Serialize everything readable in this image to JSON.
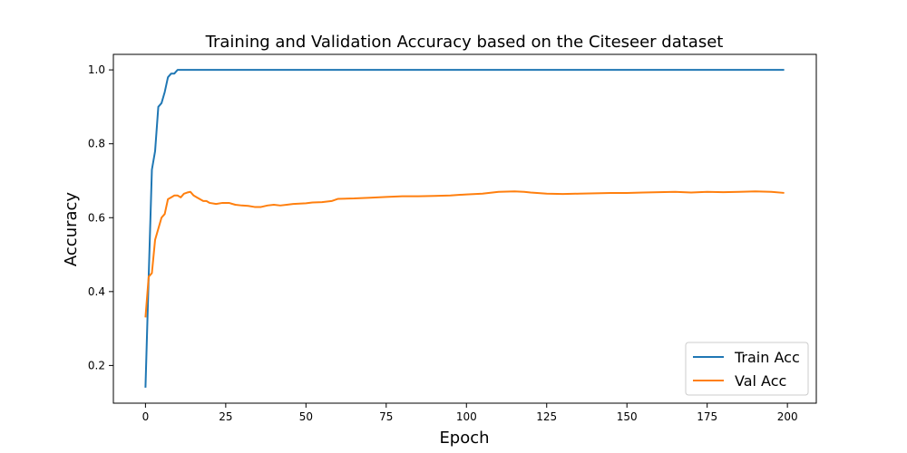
{
  "chart_data": {
    "type": "line",
    "title": "Training and Validation Accuracy based on the Citeseer dataset",
    "xlabel": "Epoch",
    "ylabel": "Accuracy",
    "xlim": [
      -10,
      209
    ],
    "ylim": [
      0.098,
      1.042
    ],
    "xticks": [
      0,
      25,
      50,
      75,
      100,
      125,
      150,
      175,
      200
    ],
    "yticks": [
      0.2,
      0.4,
      0.6,
      0.8,
      1.0
    ],
    "ytick_labels": [
      "0.2",
      "0.4",
      "0.6",
      "0.8",
      "1.0"
    ],
    "grid": false,
    "legend_position": "lower-right",
    "series": [
      {
        "name": "Train Acc",
        "color": "#1f77b4",
        "x": [
          0,
          1,
          2,
          3,
          4,
          5,
          6,
          7,
          8,
          9,
          10,
          11,
          12,
          15,
          20,
          50,
          100,
          150,
          199
        ],
        "y": [
          0.14,
          0.44,
          0.73,
          0.78,
          0.9,
          0.91,
          0.94,
          0.98,
          0.99,
          0.99,
          1.0,
          1.0,
          1.0,
          1.0,
          1.0,
          1.0,
          1.0,
          1.0,
          1.0
        ]
      },
      {
        "name": "Val Acc",
        "color": "#ff7f0e",
        "x": [
          0,
          1,
          2,
          3,
          4,
          5,
          6,
          7,
          8,
          9,
          10,
          11,
          12,
          13,
          14,
          15,
          16,
          17,
          18,
          19,
          20,
          22,
          24,
          26,
          28,
          30,
          32,
          34,
          36,
          38,
          40,
          42,
          44,
          46,
          48,
          50,
          52,
          55,
          58,
          60,
          65,
          70,
          75,
          80,
          85,
          90,
          95,
          100,
          105,
          110,
          115,
          118,
          120,
          125,
          130,
          135,
          140,
          145,
          150,
          155,
          160,
          165,
          170,
          175,
          180,
          185,
          190,
          195,
          199
        ],
        "y": [
          0.33,
          0.44,
          0.45,
          0.54,
          0.57,
          0.6,
          0.61,
          0.65,
          0.655,
          0.66,
          0.66,
          0.655,
          0.665,
          0.668,
          0.67,
          0.66,
          0.655,
          0.65,
          0.645,
          0.645,
          0.64,
          0.637,
          0.64,
          0.64,
          0.635,
          0.633,
          0.632,
          0.629,
          0.629,
          0.633,
          0.635,
          0.633,
          0.635,
          0.637,
          0.638,
          0.639,
          0.641,
          0.642,
          0.645,
          0.651,
          0.652,
          0.654,
          0.656,
          0.658,
          0.658,
          0.659,
          0.66,
          0.663,
          0.665,
          0.67,
          0.671,
          0.67,
          0.668,
          0.665,
          0.664,
          0.665,
          0.666,
          0.667,
          0.667,
          0.668,
          0.669,
          0.67,
          0.668,
          0.67,
          0.669,
          0.67,
          0.671,
          0.67,
          0.667
        ]
      }
    ]
  }
}
